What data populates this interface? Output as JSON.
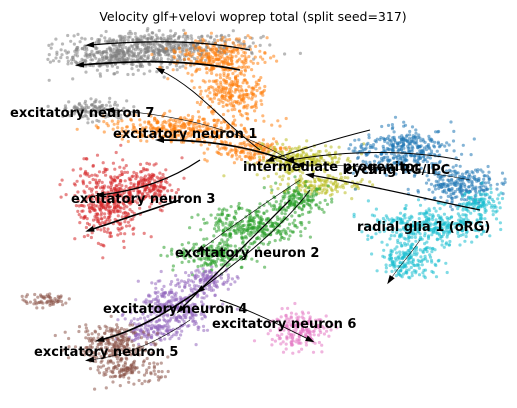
{
  "chart_data": {
    "type": "scatter",
    "title": "Velocity glf+velovi woprep total (split seed=317)",
    "xlabel": "",
    "ylabel": "",
    "grid": false,
    "legend": "on data",
    "colors": {
      "excitatory neuron 1": "#ff7f0e",
      "excitatory neuron 2": "#2ca02c",
      "excitatory neuron 3": "#d62728",
      "excitatory neuron 4": "#9467bd",
      "excitatory neuron 5": "#8c564b",
      "excitatory neuron 6": "#e377c2",
      "excitatory neuron 7": "#7f7f7f",
      "intermediate progenitor": "#bcbd22",
      "radial glia 1 (oRG)": "#17becf",
      "cycling RG/IPC": "#1f77b4"
    },
    "clusters": [
      {
        "name": "excitatory neuron 7"
      },
      {
        "name": "excitatory neuron 1"
      },
      {
        "name": "intermediate progenitor"
      },
      {
        "name": "cycling RG/IPC"
      },
      {
        "name": "excitatory neuron 3"
      },
      {
        "name": "radial glia 1 (oRG)"
      },
      {
        "name": "excitatory neuron 2"
      },
      {
        "name": "excitatory neuron 4"
      },
      {
        "name": "excitatory neuron 6"
      },
      {
        "name": "excitatory neuron 5"
      }
    ]
  }
}
